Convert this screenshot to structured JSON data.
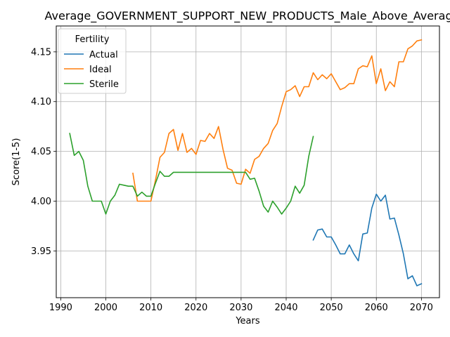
{
  "chart_data": {
    "type": "line",
    "title": "Average_GOVERNMENT_SUPPORT_NEW_PRODUCTS_Male_Above_Average",
    "xlabel": "Years",
    "ylabel": "Score(1-5)",
    "xlim": [
      1989,
      2074
    ],
    "ylim": [
      3.903,
      4.176
    ],
    "xticks": [
      1990,
      2000,
      2010,
      2020,
      2030,
      2040,
      2050,
      2060,
      2070
    ],
    "yticks": [
      3.95,
      4.0,
      4.05,
      4.1,
      4.15
    ],
    "xtick_labels": [
      "1990",
      "2000",
      "2010",
      "2020",
      "2030",
      "2040",
      "2050",
      "2060",
      "2070"
    ],
    "ytick_labels": [
      "3.95",
      "4.00",
      "4.05",
      "4.10",
      "4.15"
    ],
    "grid": true,
    "legend": {
      "title": "Fertility",
      "placement": "top-left",
      "entries": [
        "Actual",
        "Ideal",
        "Sterile"
      ]
    },
    "series": [
      {
        "name": "Actual",
        "color": "#1f77b4",
        "x": [
          2046,
          2047,
          2048,
          2049,
          2050,
          2051,
          2052,
          2053,
          2054,
          2055,
          2056,
          2057,
          2058,
          2059,
          2060,
          2061,
          2062,
          2063,
          2064,
          2065,
          2066,
          2067,
          2068,
          2069,
          2070
        ],
        "y": [
          3.961,
          3.971,
          3.972,
          3.964,
          3.964,
          3.956,
          3.947,
          3.947,
          3.956,
          3.947,
          3.94,
          3.967,
          3.968,
          3.993,
          4.007,
          4.0,
          4.006,
          3.982,
          3.983,
          3.966,
          3.947,
          3.922,
          3.925,
          3.915,
          3.917
        ]
      },
      {
        "name": "Ideal",
        "color": "#ff7f0e",
        "x": [
          2006,
          2007,
          2008,
          2009,
          2010,
          2011,
          2012,
          2013,
          2014,
          2015,
          2016,
          2017,
          2018,
          2019,
          2020,
          2021,
          2022,
          2023,
          2024,
          2025,
          2026,
          2027,
          2028,
          2029,
          2030,
          2031,
          2032,
          2033,
          2034,
          2035,
          2036,
          2037,
          2038,
          2039,
          2040,
          2041,
          2042,
          2043,
          2044,
          2045,
          2046,
          2047,
          2048,
          2049,
          2050,
          2051,
          2052,
          2053,
          2054,
          2055,
          2056,
          2057,
          2058,
          2059,
          2060,
          2061,
          2062,
          2063,
          2064,
          2065,
          2066,
          2067,
          2068,
          2069,
          2070
        ],
        "y": [
          4.028,
          4.0,
          4.0,
          4.0,
          4.0,
          4.021,
          4.044,
          4.049,
          4.068,
          4.072,
          4.051,
          4.068,
          4.049,
          4.053,
          4.047,
          4.061,
          4.06,
          4.068,
          4.063,
          4.075,
          4.052,
          4.033,
          4.031,
          4.018,
          4.017,
          4.032,
          4.028,
          4.042,
          4.045,
          4.053,
          4.058,
          4.071,
          4.078,
          4.095,
          4.11,
          4.112,
          4.116,
          4.105,
          4.115,
          4.115,
          4.129,
          4.122,
          4.127,
          4.123,
          4.128,
          4.12,
          4.112,
          4.114,
          4.118,
          4.118,
          4.133,
          4.136,
          4.135,
          4.146,
          4.118,
          4.133,
          4.111,
          4.12,
          4.115,
          4.14,
          4.14,
          4.153,
          4.156,
          4.161,
          4.162
        ]
      },
      {
        "name": "Sterile",
        "color": "#2ca02c",
        "x": [
          1992,
          1993,
          1994,
          1995,
          1996,
          1997,
          1998,
          1999,
          2000,
          2001,
          2002,
          2003,
          2004,
          2005,
          2006,
          2007,
          2008,
          2009,
          2010,
          2011,
          2012,
          2013,
          2014,
          2015,
          2016,
          2017,
          2018,
          2019,
          2020,
          2021,
          2022,
          2023,
          2024,
          2025,
          2026,
          2027,
          2028,
          2029,
          2030,
          2031,
          2032,
          2033,
          2034,
          2035,
          2036,
          2037,
          2038,
          2039,
          2040,
          2041,
          2042,
          2043,
          2044,
          2045,
          2046
        ],
        "y": [
          4.068,
          4.046,
          4.05,
          4.041,
          4.015,
          4.0,
          4.0,
          4.0,
          3.987,
          4.0,
          4.006,
          4.017,
          4.016,
          4.015,
          4.015,
          4.005,
          4.009,
          4.005,
          4.005,
          4.018,
          4.03,
          4.025,
          4.025,
          4.029,
          4.029,
          4.029,
          4.029,
          4.029,
          4.029,
          4.029,
          4.029,
          4.029,
          4.029,
          4.029,
          4.029,
          4.029,
          4.029,
          4.029,
          4.029,
          4.029,
          4.022,
          4.023,
          4.01,
          3.995,
          3.989,
          4.0,
          3.994,
          3.987,
          3.993,
          4.0,
          4.015,
          4.008,
          4.016,
          4.045,
          4.065
        ]
      }
    ]
  }
}
